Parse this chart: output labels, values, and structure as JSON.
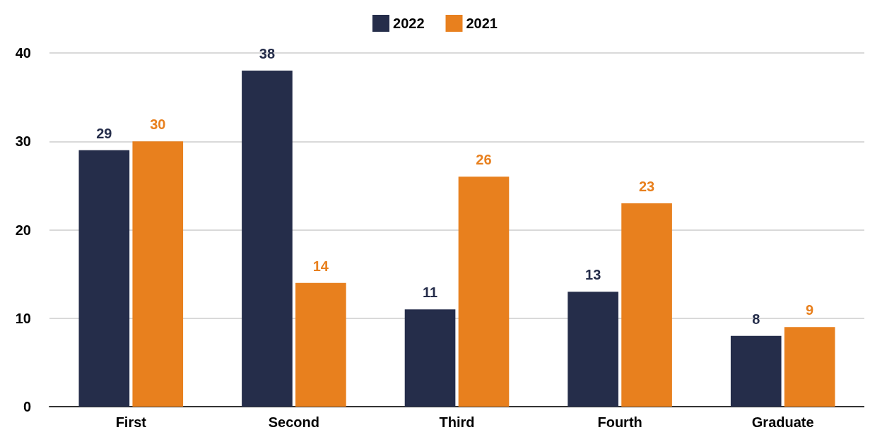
{
  "chart_data": {
    "type": "bar",
    "categories": [
      "First",
      "Second",
      "Third",
      "Fourth",
      "Graduate"
    ],
    "series": [
      {
        "name": "2022",
        "color": "#252d4a",
        "values": [
          29,
          38,
          11,
          13,
          8
        ]
      },
      {
        "name": "2021",
        "color": "#e8801e",
        "values": [
          30,
          14,
          26,
          23,
          9
        ]
      }
    ],
    "ylim": [
      0,
      40
    ],
    "yticks": [
      0,
      10,
      20,
      30,
      40
    ],
    "grid": "y",
    "legend": "top",
    "data_labels": true
  }
}
